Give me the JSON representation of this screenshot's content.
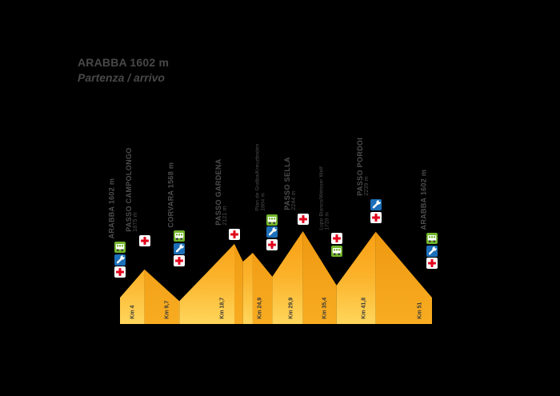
{
  "title": {
    "line1": "ARABBA 1602 m",
    "line2": "Partenza / arrivo"
  },
  "colors": {
    "background": "#000000",
    "ascent_top": "#F89D12",
    "ascent_mid": "#FBB22A",
    "ascent_bottom": "#FFD65B",
    "descent_top": "#EE9810",
    "descent_bottom": "#F8AC21",
    "station_text": "#4E4E50",
    "km_text": "#3A3A3A",
    "title_text": "#48484A",
    "first_aid_red": "#E2001A",
    "wrench_blue": "#1C6FB8",
    "bus_green": "#72B52C",
    "icon_white": "#FFFFFF",
    "wheel_dark": "#2E2E2E"
  },
  "chart_data": {
    "type": "area",
    "title": "ARABBA 1602 m — Partenza / arrivo",
    "xlabel": "Km",
    "ylabel": "m",
    "x_range_km": [
      0,
      51
    ],
    "elevation_baseline_m": 1347,
    "elevation_max_m": 2244,
    "points": [
      {
        "km": 0,
        "elevation": 1602,
        "name": "Arabba (partenza)"
      },
      {
        "km": 4,
        "elevation": 1875,
        "name": "Passo Campolongo"
      },
      {
        "km": 9.7,
        "elevation": 1568,
        "name": "Corvara"
      },
      {
        "km": 18.7,
        "elevation": 2121,
        "name": "Passo Gardena"
      },
      {
        "km": 24.9,
        "elevation": 1804,
        "name": "Plan de Gralba"
      },
      {
        "km": 29.9,
        "elevation": 2244,
        "name": "Passo Sella"
      },
      {
        "km": 35.4,
        "elevation": 1720,
        "name": "Lupo Bianco"
      },
      {
        "km": 41.8,
        "elevation": 2239,
        "name": "Passo Pordoi"
      },
      {
        "km": 51,
        "elevation": 1602,
        "name": "Arabba (arrivo)"
      }
    ],
    "shape_points": [
      [
        0,
        1602
      ],
      [
        4,
        1875
      ],
      [
        9.7,
        1568
      ],
      [
        18.7,
        2121
      ],
      [
        20.1,
        1950
      ],
      [
        21.7,
        2035
      ],
      [
        24.9,
        1804
      ],
      [
        29.9,
        2244
      ],
      [
        35.4,
        1720
      ],
      [
        41.8,
        2239
      ],
      [
        51,
        1602
      ]
    ],
    "km_markers": [
      {
        "label": "Km 4",
        "km": 4
      },
      {
        "label": "Km 9,7",
        "km": 9.7
      },
      {
        "label": "Km 18,7",
        "km": 18.7
      },
      {
        "label": "Km 24,9",
        "km": 24.9
      },
      {
        "label": "Km 29,9",
        "km": 29.9
      },
      {
        "label": "Km 35,4",
        "km": 35.4
      },
      {
        "label": "Km 41,8",
        "km": 41.8
      },
      {
        "label": "Km 51",
        "km": 51
      }
    ]
  },
  "stations": [
    {
      "slug": "arabba-start",
      "km": 0,
      "elevation": 1602,
      "style": "single",
      "lines": [
        "ARABBA 1602 m"
      ],
      "icons": [
        "bus",
        "wrench",
        "first-aid"
      ]
    },
    {
      "slug": "passo-campolongo",
      "km": 4,
      "elevation": 1875,
      "style": "pass",
      "lines": [
        "PASSO CAMPOLONGO",
        "1875 m"
      ],
      "icons": [
        "first-aid"
      ]
    },
    {
      "slug": "corvara",
      "km": 9.7,
      "elevation": 1568,
      "style": "single",
      "lines": [
        "CORVARA 1568 m"
      ],
      "icons": [
        "bus",
        "wrench",
        "first-aid"
      ]
    },
    {
      "slug": "passo-gardena",
      "km": 18.7,
      "elevation": 2121,
      "style": "pass",
      "lines": [
        "PASSO GARDENA",
        "2121 m"
      ],
      "icons": [
        "first-aid"
      ]
    },
    {
      "slug": "plan-de-gralba",
      "km": 24.9,
      "elevation": 1804,
      "style": "small",
      "lines": [
        "Plan de Gralba/Kreuzboden",
        "1804 m"
      ],
      "icons": [
        "bus",
        "wrench",
        "first-aid"
      ]
    },
    {
      "slug": "passo-sella",
      "km": 29.9,
      "elevation": 2244,
      "style": "pass",
      "lines": [
        "PASSO SELLA",
        "2244 m"
      ],
      "icons": [
        "first-aid"
      ]
    },
    {
      "slug": "lupo-bianco",
      "km": 35.4,
      "elevation": 1720,
      "style": "small",
      "lines": [
        "Lupo Bianco/Weisser Wolf",
        "1720 m"
      ],
      "icons": [
        "first-aid",
        "bus"
      ]
    },
    {
      "slug": "passo-pordoi",
      "km": 41.8,
      "elevation": 2239,
      "style": "pass",
      "lines": [
        "PASSO PORDOI",
        "2239 m"
      ],
      "icons": [
        "wrench",
        "first-aid"
      ]
    },
    {
      "slug": "arabba-finish",
      "km": 51,
      "elevation": 1602,
      "style": "single",
      "lines": [
        "ARABBA 1602 m"
      ],
      "icons": [
        "bus",
        "wrench",
        "first-aid"
      ]
    }
  ]
}
